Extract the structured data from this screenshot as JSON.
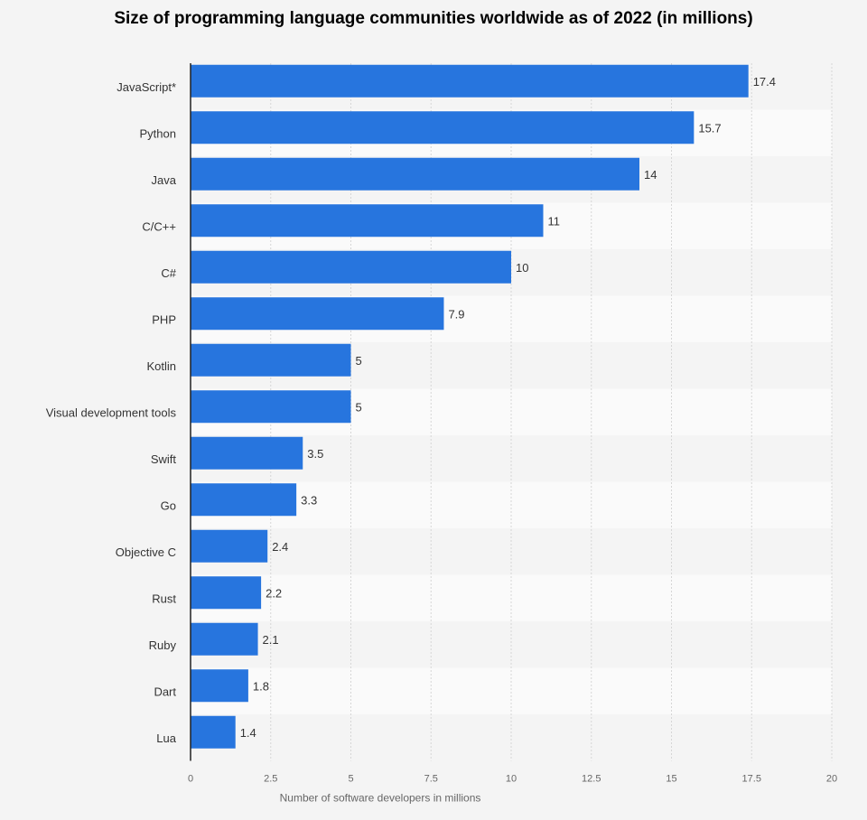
{
  "chart_data": {
    "type": "bar",
    "orientation": "horizontal",
    "title": "Size of programming language communities worldwide as of 2022 (in millions)",
    "xlabel": "Number of software developers in millions",
    "ylabel": "",
    "categories": [
      "JavaScript*",
      "Python",
      "Java",
      "C/C++",
      "C#",
      "PHP",
      "Kotlin",
      "Visual development tools",
      "Swift",
      "Go",
      "Objective C",
      "Rust",
      "Ruby",
      "Dart",
      "Lua"
    ],
    "values": [
      17.4,
      15.7,
      14,
      11,
      10,
      7.9,
      5,
      5,
      3.5,
      3.3,
      2.4,
      2.2,
      2.1,
      1.8,
      1.4
    ],
    "xlim": [
      0,
      20
    ],
    "xticks": [
      0,
      2.5,
      5,
      7.5,
      10,
      12.5,
      15,
      17.5,
      20
    ],
    "grid": true,
    "legend": "none",
    "colors": {
      "bar": "#2775de",
      "background": "#f4f4f4",
      "alt_row": "#fafafa"
    }
  }
}
